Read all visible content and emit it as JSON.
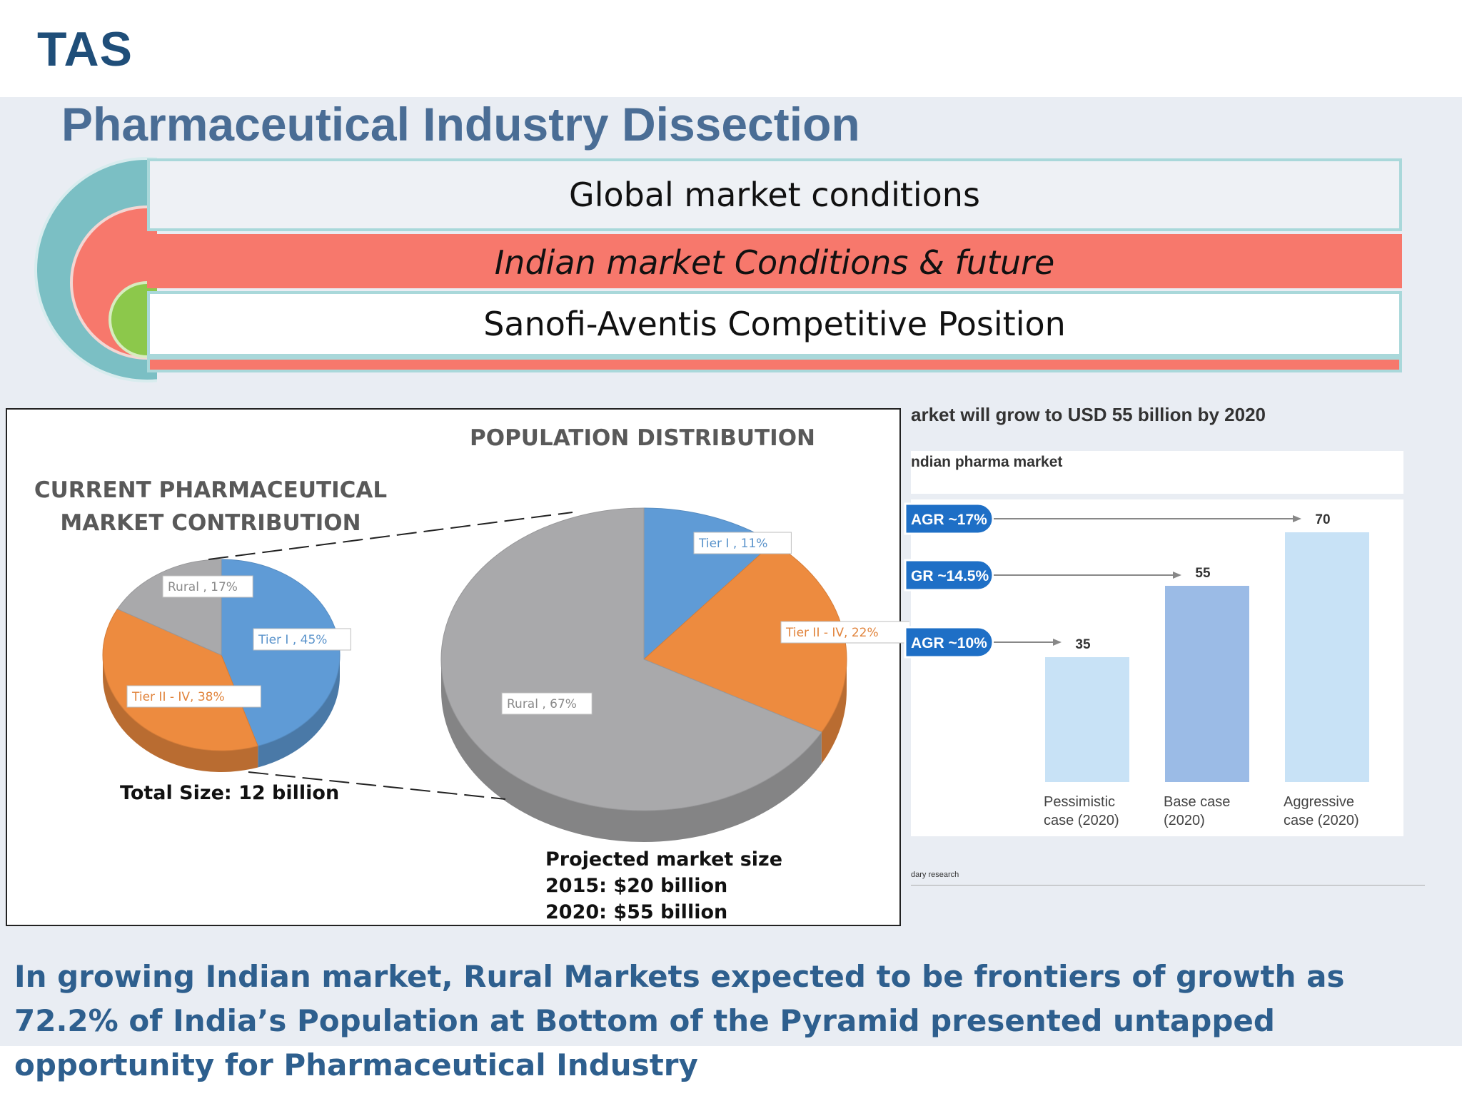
{
  "brand": {
    "logo": "TAS",
    "title_color": "#4a6d95",
    "logo_color": "#1f4e79"
  },
  "header": {
    "title": "Pharmaceutical Industry Dissection"
  },
  "sections": {
    "row1": "Global market conditions",
    "row2": "Indian market Conditions & future",
    "row3": "Sanofi-Aventis Competitive Position"
  },
  "colors": {
    "teal": "#7bbfc4",
    "salmon": "#f7786c",
    "green": "#8cc84b",
    "blue": "#5f9bd6",
    "orange": "#ed8b3f",
    "gray": "#a9a9ab",
    "bar_light": "#c8e2f6",
    "bar_mid": "#9bbbe6",
    "badge": "#1e6fc6"
  },
  "left_panel": {
    "current_caption_line1": "CURRENT PHARMACEUTICAL",
    "current_caption_line2": "MARKET CONTRIBUTION",
    "population_caption": "POPULATION DISTRIBUTION",
    "total_size": "Total Size: 12 billion",
    "projected_line1": "Projected market size",
    "projected_line2": "2015: $20 billion",
    "projected_line3": "2020: $55 billion"
  },
  "right_panel": {
    "title": "arket will grow to USD 55 billion by 2020",
    "subtitle": "ndian pharma market",
    "source": "dary research"
  },
  "footer": {
    "text": "In growing Indian market, Rural Markets expected to be frontiers of growth as 72.2% of India’s Population at Bottom of the Pyramid presented untapped opportunity for Pharmaceutical Industry"
  },
  "chart_data": [
    {
      "type": "pie",
      "title": "CURRENT PHARMACEUTICAL MARKET CONTRIBUTION",
      "slices": [
        {
          "label": "Tier I , 45%",
          "value": 45,
          "color": "#5f9bd6"
        },
        {
          "label": "Tier II - IV, 38%",
          "value": 38,
          "color": "#ed8b3f"
        },
        {
          "label": "Rural , 17%",
          "value": 17,
          "color": "#a9a9ab"
        }
      ]
    },
    {
      "type": "pie",
      "title": "POPULATION DISTRIBUTION",
      "slices": [
        {
          "label": "Tier I , 11%",
          "value": 11,
          "color": "#5f9bd6"
        },
        {
          "label": "Tier II - IV, 22%",
          "value": 22,
          "color": "#ed8b3f"
        },
        {
          "label": "Rural , 67%",
          "value": 67,
          "color": "#a9a9ab"
        }
      ]
    },
    {
      "type": "bar",
      "categories": [
        "Pessimistic case (2020)",
        "Base case (2020)",
        "Aggressive case (2020)"
      ],
      "category_lines": [
        [
          "Pessimistic",
          "case (2020)"
        ],
        [
          "Base case",
          "(2020)"
        ],
        [
          "Aggressive",
          "case (2020)"
        ]
      ],
      "values": [
        35,
        55,
        70
      ],
      "value_labels": [
        "35",
        "55",
        "70"
      ],
      "growth_labels": [
        "AGR ~10%",
        "GR ~14.5%",
        "AGR ~17%"
      ],
      "colors": [
        "#c8e2f6",
        "#9bbbe6",
        "#c8e2f6"
      ],
      "ylim": [
        0,
        80
      ]
    }
  ]
}
